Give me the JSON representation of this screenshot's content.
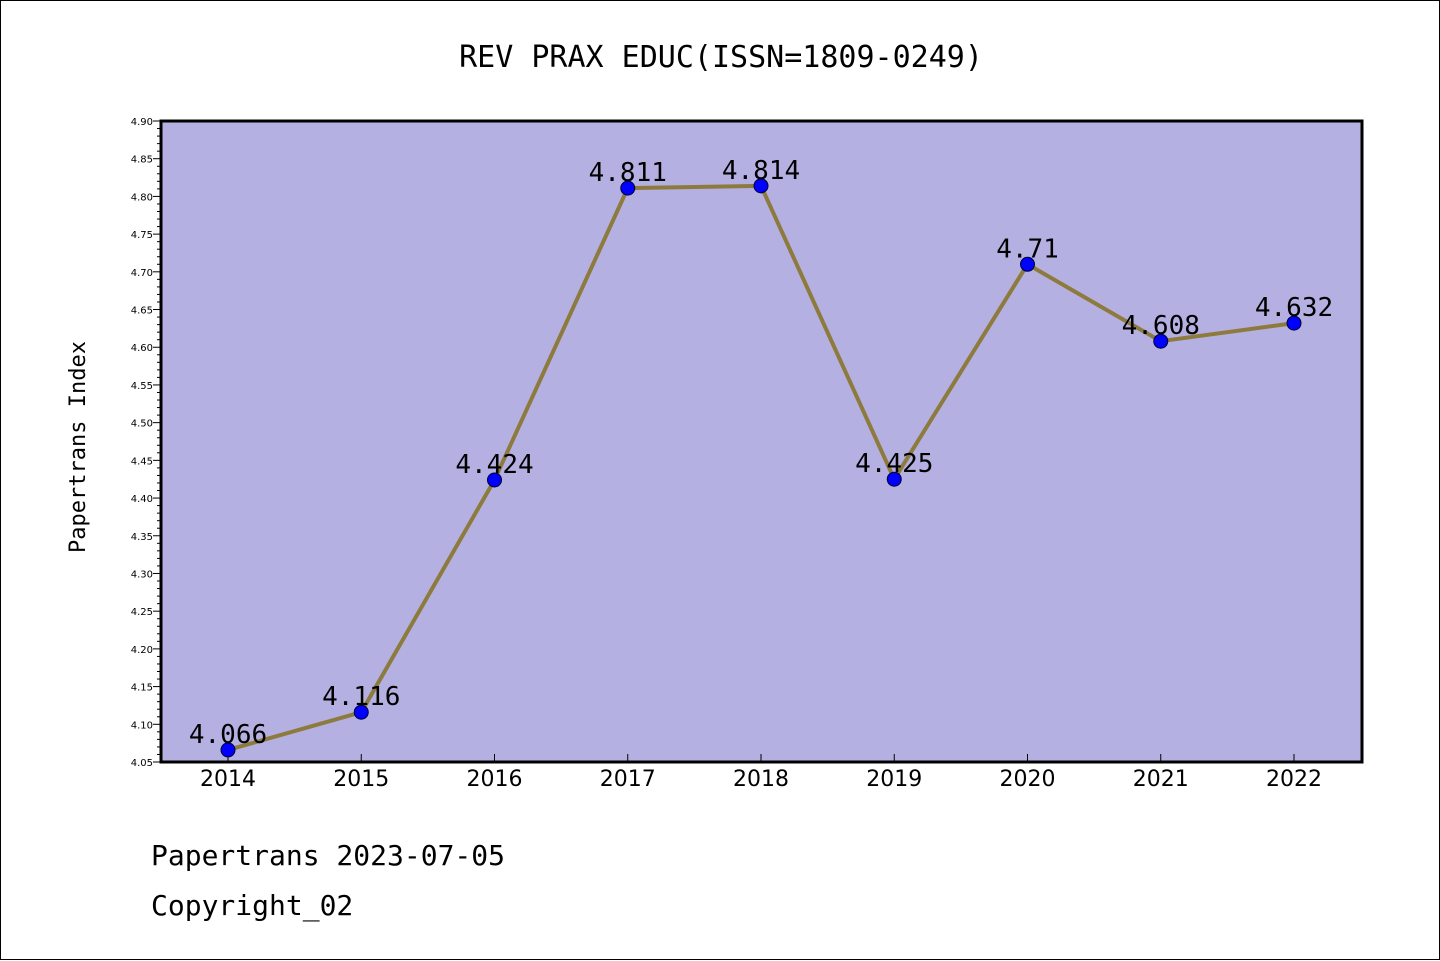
{
  "chart_data": {
    "type": "line",
    "title": "REV PRAX EDUC(ISSN=1809-0249)",
    "xlabel": "",
    "ylabel": "Papertrans Index",
    "categories": [
      "2014",
      "2015",
      "2016",
      "2017",
      "2018",
      "2019",
      "2020",
      "2021",
      "2022"
    ],
    "series": [
      {
        "values": [
          4.066,
          4.116,
          4.424,
          4.811,
          4.814,
          4.425,
          4.71,
          4.608,
          4.632
        ],
        "data_labels": [
          "4.066",
          "4.116",
          "4.424",
          "4.811",
          "4.814",
          "4.425",
          "4.71",
          "4.608",
          "4.632"
        ]
      }
    ],
    "ylim": [
      4.05,
      4.9
    ],
    "yticks": [
      "4.05",
      "4.10",
      "4.15",
      "4.20",
      "4.25",
      "4.30",
      "4.35",
      "4.40",
      "4.45",
      "4.50",
      "4.55",
      "4.60",
      "4.65",
      "4.70",
      "4.75",
      "4.80",
      "4.85",
      "4.90"
    ],
    "grid": false,
    "legend": "none",
    "colors": {
      "plot_background": "#b5b0e2",
      "line": "#8c7b3d",
      "marker": "#0000ff",
      "axes": "#000000"
    }
  },
  "footer": {
    "line1": "Papertrans 2023-07-05",
    "line2": "Copyright_02"
  }
}
